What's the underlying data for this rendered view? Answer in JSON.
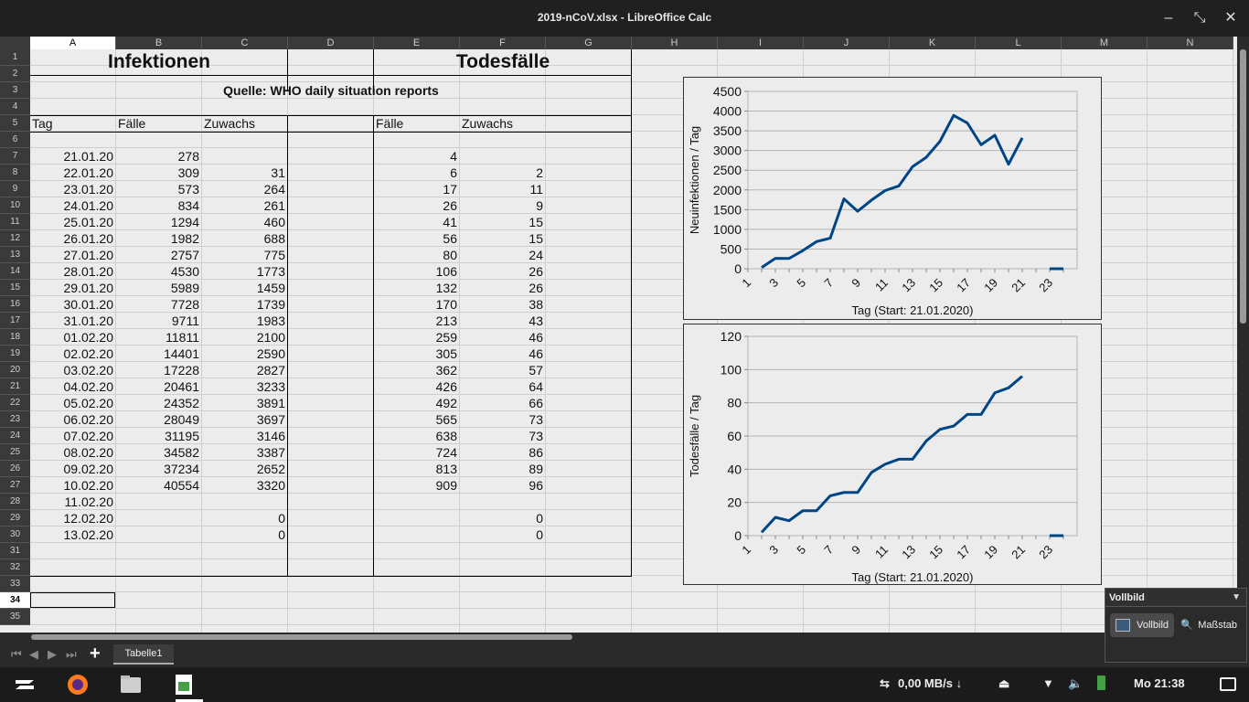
{
  "window": {
    "title": "2019-nCoV.xlsx - LibreOffice Calc",
    "minimize_icon": "minimize-icon",
    "restore_icon": "restore-icon",
    "close_icon": "close-icon"
  },
  "columns": [
    "A",
    "B",
    "C",
    "D",
    "E",
    "F",
    "G",
    "H",
    "I",
    "J",
    "K",
    "L",
    "M",
    "N"
  ],
  "rows": [
    "1",
    "2",
    "3",
    "4",
    "5",
    "6",
    "7",
    "8",
    "9",
    "10",
    "11",
    "12",
    "13",
    "14",
    "15",
    "16",
    "17",
    "18",
    "19",
    "20",
    "21",
    "22",
    "23",
    "24",
    "25",
    "26",
    "27",
    "28",
    "29",
    "30",
    "31",
    "32",
    "33",
    "34",
    "35"
  ],
  "selected_cell": {
    "column": "A",
    "row": "34"
  },
  "sheet": {
    "heading_infections": "Infektionen",
    "heading_deaths": "Todesfälle",
    "source": "Quelle: WHO daily situation reports",
    "col_labels": {
      "tag": "Tag",
      "faelle": "Fälle",
      "zuwachs": "Zuwachs",
      "faelle2": "Fälle",
      "zuwachs2": "Zuwachs"
    },
    "data_rows": [
      [
        "21.01.20",
        "278",
        "",
        "4",
        ""
      ],
      [
        "22.01.20",
        "309",
        "31",
        "6",
        "2"
      ],
      [
        "23.01.20",
        "573",
        "264",
        "17",
        "11"
      ],
      [
        "24.01.20",
        "834",
        "261",
        "26",
        "9"
      ],
      [
        "25.01.20",
        "1294",
        "460",
        "41",
        "15"
      ],
      [
        "26.01.20",
        "1982",
        "688",
        "56",
        "15"
      ],
      [
        "27.01.20",
        "2757",
        "775",
        "80",
        "24"
      ],
      [
        "28.01.20",
        "4530",
        "1773",
        "106",
        "26"
      ],
      [
        "29.01.20",
        "5989",
        "1459",
        "132",
        "26"
      ],
      [
        "30.01.20",
        "7728",
        "1739",
        "170",
        "38"
      ],
      [
        "31.01.20",
        "9711",
        "1983",
        "213",
        "43"
      ],
      [
        "01.02.20",
        "11811",
        "2100",
        "259",
        "46"
      ],
      [
        "02.02.20",
        "14401",
        "2590",
        "305",
        "46"
      ],
      [
        "03.02.20",
        "17228",
        "2827",
        "362",
        "57"
      ],
      [
        "04.02.20",
        "20461",
        "3233",
        "426",
        "64"
      ],
      [
        "05.02.20",
        "24352",
        "3891",
        "492",
        "66"
      ],
      [
        "06.02.20",
        "28049",
        "3697",
        "565",
        "73"
      ],
      [
        "07.02.20",
        "31195",
        "3146",
        "638",
        "73"
      ],
      [
        "08.02.20",
        "34582",
        "3387",
        "724",
        "86"
      ],
      [
        "09.02.20",
        "37234",
        "2652",
        "813",
        "89"
      ],
      [
        "10.02.20",
        "40554",
        "3320",
        "909",
        "96"
      ],
      [
        "11.02.20",
        "",
        "",
        "",
        ""
      ],
      [
        "12.02.20",
        "",
        "0",
        "",
        "0"
      ],
      [
        "13.02.20",
        "",
        "0",
        "",
        "0"
      ]
    ]
  },
  "chart_data": [
    {
      "type": "line",
      "title": "",
      "xlabel": "Tag (Start: 21.01.2020)",
      "ylabel": "Neuinfektionen / Tag",
      "ylim": [
        0,
        4500
      ],
      "yticks": [
        "0",
        "500",
        "1000",
        "1500",
        "2000",
        "2500",
        "3000",
        "3500",
        "4000",
        "4500"
      ],
      "xticks": [
        "1",
        "3",
        "5",
        "7",
        "9",
        "11",
        "13",
        "15",
        "17",
        "19",
        "21",
        "23"
      ],
      "x": [
        2,
        3,
        4,
        5,
        6,
        7,
        8,
        9,
        10,
        11,
        12,
        13,
        14,
        15,
        16,
        17,
        18,
        19,
        20,
        21,
        23,
        24
      ],
      "values": [
        31,
        264,
        261,
        460,
        688,
        775,
        1773,
        1459,
        1739,
        1983,
        2100,
        2590,
        2827,
        3233,
        3891,
        3697,
        3146,
        3387,
        2652,
        3320,
        0,
        0
      ],
      "color": "#004586"
    },
    {
      "type": "line",
      "title": "",
      "xlabel": "Tag (Start: 21.01.2020)",
      "ylabel": "Todesfälle / Tag",
      "ylim": [
        0,
        120
      ],
      "yticks": [
        "0",
        "20",
        "40",
        "60",
        "80",
        "100",
        "120"
      ],
      "xticks": [
        "1",
        "3",
        "5",
        "7",
        "9",
        "11",
        "13",
        "15",
        "17",
        "19",
        "21",
        "23"
      ],
      "x": [
        2,
        3,
        4,
        5,
        6,
        7,
        8,
        9,
        10,
        11,
        12,
        13,
        14,
        15,
        16,
        17,
        18,
        19,
        20,
        21,
        23,
        24
      ],
      "values": [
        2,
        11,
        9,
        15,
        15,
        24,
        26,
        26,
        38,
        43,
        46,
        46,
        57,
        64,
        66,
        73,
        73,
        86,
        89,
        96,
        0,
        0
      ],
      "color": "#004586"
    }
  ],
  "tabs": {
    "sheet1": "Tabelle1"
  },
  "zoom_popup": {
    "header": "Vollbild",
    "option_fullscreen": "Vollbild",
    "option_scale": "Maßstab"
  },
  "taskbar": {
    "network_rate": "0,00 MB/s ↓",
    "clock": "Mo 21:38",
    "apps": [
      "zorin-menu-icon",
      "firefox-icon",
      "files-icon",
      "calc-icon"
    ]
  }
}
